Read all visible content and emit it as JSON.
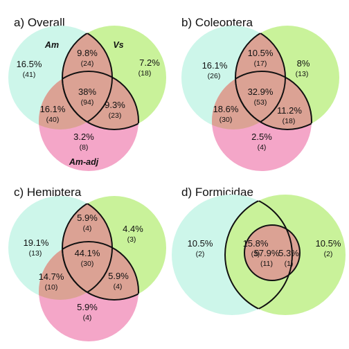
{
  "colors": {
    "am": "#cdf6ea",
    "vs": "#c9f29a",
    "am_adj": "#f4a6c8",
    "overlap": "#dba294",
    "outline": "#111111"
  },
  "panels": {
    "a": {
      "title": "a) Overall",
      "set_labels": {
        "am": "Am",
        "vs": "Vs",
        "am_adj": "Am-adj"
      },
      "regions": {
        "am_only": {
          "pct": "16.5%",
          "n": "(41)"
        },
        "am_vs": {
          "pct": "9.8%",
          "n": "(24)"
        },
        "vs_only": {
          "pct": "7.2%",
          "n": "(18)"
        },
        "all": {
          "pct": "38%",
          "n": "(94)"
        },
        "am_adj": {
          "pct": "16.1%",
          "n": "(40)"
        },
        "vs_adj": {
          "pct": "9.3%",
          "n": "(23)"
        },
        "adj_only": {
          "pct": "3.2%",
          "n": "(8)"
        }
      }
    },
    "b": {
      "title": "b) Coleoptera",
      "regions": {
        "am_only": {
          "pct": "16.1%",
          "n": "(26)"
        },
        "am_vs": {
          "pct": "10.5%",
          "n": "(17)"
        },
        "vs_only": {
          "pct": "8%",
          "n": "(13)"
        },
        "all": {
          "pct": "32.9%",
          "n": "(53)"
        },
        "am_adj": {
          "pct": "18.6%",
          "n": "(30)"
        },
        "vs_adj": {
          "pct": "11.2%",
          "n": "(18)"
        },
        "adj_only": {
          "pct": "2.5%",
          "n": "(4)"
        }
      }
    },
    "c": {
      "title": "c) Hemiptera",
      "regions": {
        "am_only": {
          "pct": "19.1%",
          "n": "(13)"
        },
        "am_vs": {
          "pct": "5.9%",
          "n": "(4)"
        },
        "vs_only": {
          "pct": "4.4%",
          "n": "(3)"
        },
        "all": {
          "pct": "44.1%",
          "n": "(30)"
        },
        "am_adj": {
          "pct": "14.7%",
          "n": "(10)"
        },
        "vs_adj": {
          "pct": "5.9%",
          "n": "(4)"
        },
        "adj_only": {
          "pct": "5.9%",
          "n": "(4)"
        }
      }
    },
    "d": {
      "title": "d) Formicidae",
      "regions": {
        "am_only": {
          "pct": "10.5%",
          "n": "(2)"
        },
        "am_vs": {
          "pct": "15.8%",
          "n": "(3)"
        },
        "all": {
          "pct": "57.9%",
          "n": "(11)"
        },
        "vs_adj": {
          "pct": "5.3%",
          "n": "(1)"
        },
        "vs_only": {
          "pct": "10.5%",
          "n": "(2)"
        }
      }
    }
  }
}
